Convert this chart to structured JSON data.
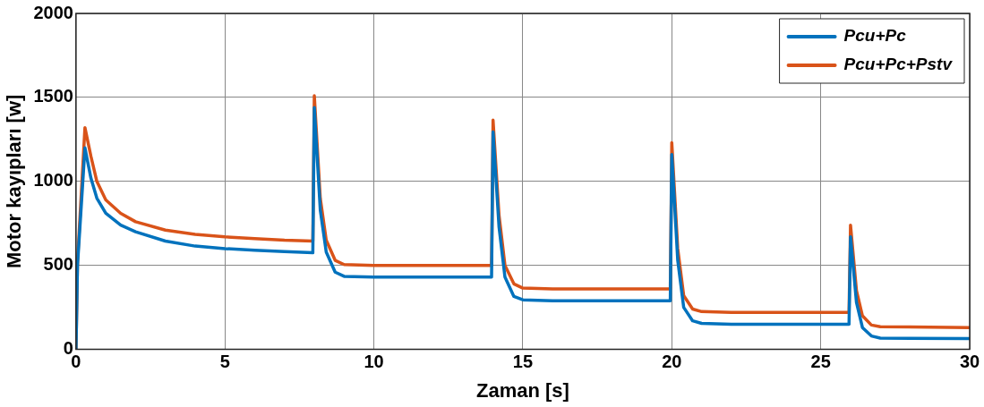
{
  "chart_data": {
    "type": "line",
    "xlabel": "Zaman [s]",
    "ylabel": "Motor kayıpları [w]",
    "xlim": [
      0,
      30
    ],
    "xticks": [
      0,
      5,
      10,
      15,
      20,
      25,
      30
    ],
    "ylim": [
      0,
      2000
    ],
    "yticks": [
      0,
      500,
      1000,
      1500,
      2000
    ],
    "grid": true,
    "legend": "top right",
    "marker": "none",
    "line_style": "solid",
    "series": [
      {
        "name": "Pcu+Pc",
        "color": "#0072bd",
        "x": [
          0,
          0.05,
          0.3,
          0.5,
          0.7,
          1,
          1.5,
          2,
          3,
          4,
          5,
          6,
          7,
          7.95,
          8,
          8.2,
          8.4,
          8.7,
          9,
          10,
          13.95,
          14,
          14.2,
          14.4,
          14.7,
          15,
          16,
          19.95,
          20,
          20.2,
          20.4,
          20.7,
          21,
          22,
          25.95,
          26,
          26.2,
          26.4,
          26.7,
          27,
          30
        ],
        "values": [
          0,
          500,
          1200,
          1020,
          900,
          810,
          740,
          700,
          645,
          615,
          600,
          590,
          582,
          575,
          1440,
          830,
          580,
          460,
          435,
          430,
          430,
          1295,
          730,
          430,
          315,
          295,
          290,
          290,
          1160,
          530,
          250,
          170,
          155,
          150,
          150,
          670,
          280,
          130,
          80,
          67,
          65
        ]
      },
      {
        "name": "Pcu+Pc+Pstv",
        "color": "#d95319",
        "x": [
          0,
          0.05,
          0.3,
          0.5,
          0.7,
          1,
          1.5,
          2,
          3,
          4,
          5,
          6,
          7,
          7.95,
          8,
          8.2,
          8.4,
          8.7,
          9,
          10,
          13.95,
          14,
          14.2,
          14.4,
          14.7,
          15,
          16,
          19.95,
          20,
          20.2,
          20.4,
          20.7,
          21,
          22,
          25.95,
          26,
          26.2,
          26.4,
          26.7,
          27,
          30
        ],
        "values": [
          0,
          520,
          1320,
          1150,
          1000,
          890,
          810,
          760,
          710,
          685,
          670,
          660,
          650,
          645,
          1510,
          900,
          650,
          530,
          505,
          500,
          500,
          1365,
          800,
          500,
          390,
          365,
          360,
          360,
          1230,
          600,
          320,
          240,
          225,
          220,
          220,
          740,
          350,
          200,
          145,
          135,
          130
        ]
      }
    ]
  }
}
